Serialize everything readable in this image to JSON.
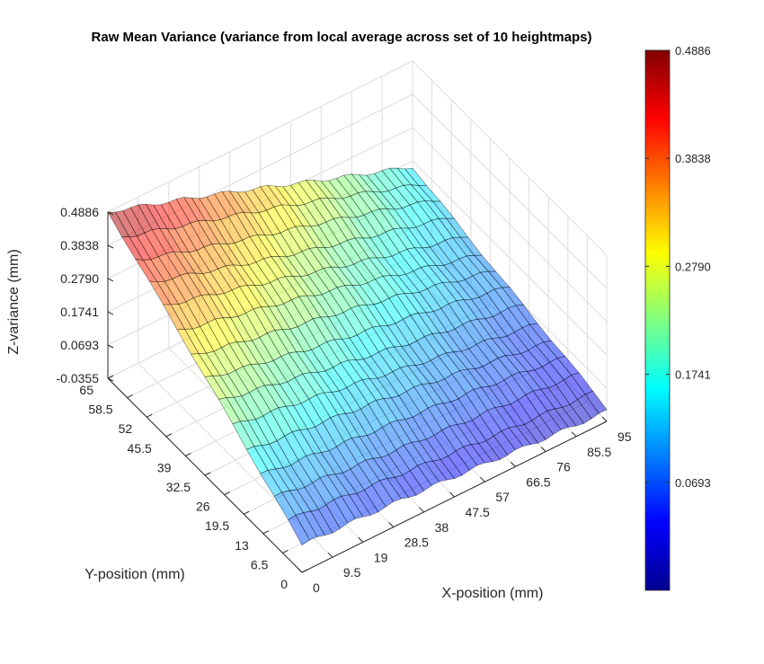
{
  "chart_data": {
    "type": "surface",
    "title": "Raw Mean Variance (variance from local average across set of 10 heightmaps)",
    "xlabel": "X-position (mm)",
    "ylabel": "Y-position (mm)",
    "zlabel": "Z-variance (mm)",
    "x_ticks": [
      "0",
      "9.5",
      "19",
      "28.5",
      "38",
      "47.5",
      "57",
      "66.5",
      "76",
      "85.5",
      "95"
    ],
    "y_ticks": [
      "0",
      "6.5",
      "13",
      "19.5",
      "26",
      "32.5",
      "39",
      "45.5",
      "52",
      "58.5",
      "65"
    ],
    "z_ticks": [
      "-0.0355",
      "0.0693",
      "0.1741",
      "0.2790",
      "0.3838",
      "0.4886"
    ],
    "xlim": [
      0,
      95
    ],
    "ylim": [
      0,
      65
    ],
    "zlim": [
      -0.0355,
      0.4886
    ],
    "grid": true,
    "colormap": "jet",
    "face_alpha": 0.5,
    "colorbar": {
      "location": "right",
      "range": [
        -0.0355,
        0.4886
      ],
      "ticks": [
        "0.0693",
        "0.1741",
        "0.2790",
        "0.3838",
        "0.4886"
      ]
    },
    "surface_summary": {
      "min_at": "x=95, y=0",
      "max_at": "x=0, y=65",
      "z_at_x0_y0": 0.05,
      "z_at_x95_y0": 0.0,
      "z_at_x0_y65": 0.4886,
      "z_at_x95_y65": 0.16
    }
  }
}
